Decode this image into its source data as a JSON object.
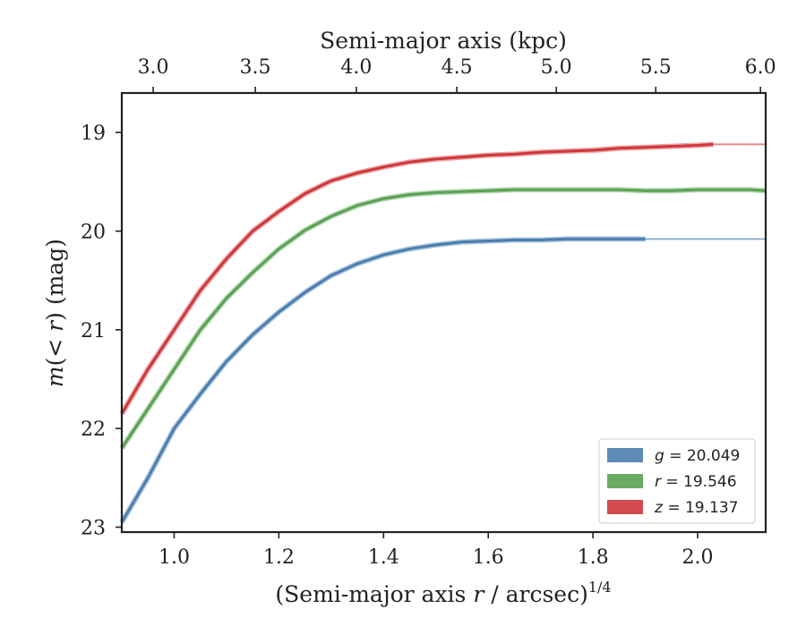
{
  "chart_data": {
    "type": "line",
    "title": "",
    "xlabel_prefix": "(Semi-major axis ",
    "xlabel_var": "r",
    "xlabel_suffix": " / arcsec)",
    "xlabel_exp": "1/4",
    "ylabel_prefix": "m",
    "ylabel_paren": "(< ",
    "ylabel_var": "r",
    "ylabel_close": ")",
    "ylabel_unit": " (mag)",
    "top_xlabel": "Semi-major axis (kpc)",
    "xlim": [
      0.9,
      2.13
    ],
    "ylim": [
      23.05,
      18.6
    ],
    "y_inverted": true,
    "xticks": [
      1.0,
      1.2,
      1.4,
      1.6,
      1.8,
      2.0
    ],
    "xtick_labels": [
      "1.0",
      "1.2",
      "1.4",
      "1.6",
      "1.8",
      "2.0"
    ],
    "yticks": [
      19,
      20,
      21,
      22,
      23
    ],
    "ytick_labels": [
      "19",
      "20",
      "21",
      "22",
      "23"
    ],
    "top_xticks": [
      3.0,
      3.5,
      4.0,
      4.5,
      5.0,
      5.5,
      6.0
    ],
    "top_xtick_labels": [
      "3.0",
      "3.5",
      "4.0",
      "4.5",
      "5.0",
      "5.5",
      "6.0"
    ],
    "top_xtick_positions": [
      0.96,
      1.155,
      1.348,
      1.54,
      1.73,
      1.92,
      2.12
    ],
    "grid": false,
    "legend_position": "bottom-right",
    "series": [
      {
        "name": "g",
        "legend_var": "g",
        "legend_value": "= 20.049",
        "color": "#4a7eb0",
        "model_end_x": 2.13,
        "x": [
          0.9,
          0.95,
          1.0,
          1.05,
          1.1,
          1.15,
          1.2,
          1.25,
          1.3,
          1.35,
          1.4,
          1.45,
          1.5,
          1.55,
          1.6,
          1.65,
          1.7,
          1.75,
          1.8,
          1.85,
          1.9
        ],
        "y": [
          22.95,
          22.5,
          22.0,
          21.65,
          21.32,
          21.05,
          20.82,
          20.62,
          20.45,
          20.33,
          20.24,
          20.18,
          20.14,
          20.11,
          20.1,
          20.09,
          20.09,
          20.08,
          20.08,
          20.08,
          20.08
        ]
      },
      {
        "name": "r",
        "legend_var": "r",
        "legend_value": "= 19.546",
        "color": "#59a252",
        "model_end_x": 2.13,
        "x": [
          0.9,
          0.95,
          1.0,
          1.05,
          1.1,
          1.15,
          1.2,
          1.25,
          1.3,
          1.35,
          1.4,
          1.45,
          1.5,
          1.55,
          1.6,
          1.65,
          1.7,
          1.75,
          1.8,
          1.85,
          1.9,
          1.95,
          2.0,
          2.05,
          2.1,
          2.13
        ],
        "y": [
          22.2,
          21.8,
          21.4,
          21.0,
          20.68,
          20.42,
          20.18,
          19.99,
          19.85,
          19.74,
          19.67,
          19.63,
          19.61,
          19.6,
          19.59,
          19.58,
          19.58,
          19.58,
          19.58,
          19.58,
          19.59,
          19.59,
          19.58,
          19.58,
          19.58,
          19.59
        ]
      },
      {
        "name": "z",
        "legend_var": "z",
        "legend_value": "= 19.137",
        "color": "#d0373a",
        "model_end_x": 2.13,
        "x": [
          0.9,
          0.95,
          1.0,
          1.05,
          1.1,
          1.15,
          1.2,
          1.25,
          1.3,
          1.35,
          1.4,
          1.45,
          1.5,
          1.55,
          1.6,
          1.65,
          1.7,
          1.75,
          1.8,
          1.85,
          1.9,
          1.95,
          2.0,
          2.03
        ],
        "y": [
          21.85,
          21.4,
          21.0,
          20.6,
          20.28,
          20.0,
          19.8,
          19.62,
          19.49,
          19.41,
          19.35,
          19.3,
          19.27,
          19.25,
          19.23,
          19.22,
          19.2,
          19.19,
          19.18,
          19.16,
          19.15,
          19.14,
          19.13,
          19.12
        ]
      }
    ]
  }
}
